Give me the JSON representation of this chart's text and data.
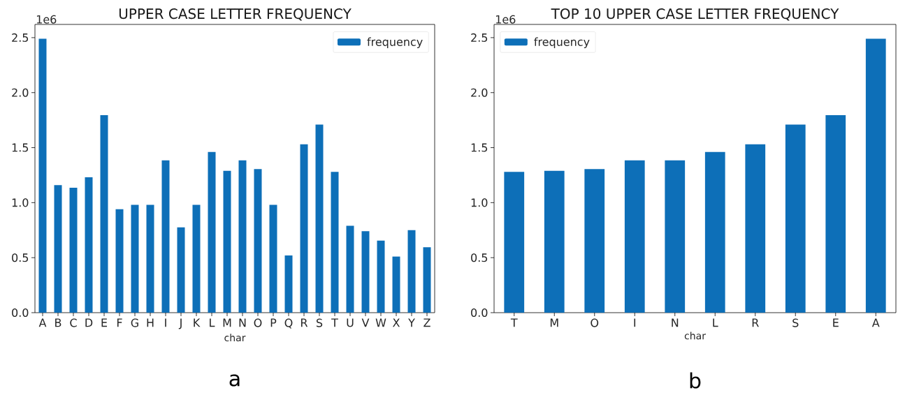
{
  "chart_data": [
    {
      "type": "bar",
      "title": "UPPER CASE LETTER FREQUENCY",
      "xlabel": "char",
      "categories": [
        "A",
        "B",
        "C",
        "D",
        "E",
        "F",
        "G",
        "H",
        "I",
        "J",
        "K",
        "L",
        "M",
        "N",
        "O",
        "P",
        "Q",
        "R",
        "S",
        "T",
        "U",
        "V",
        "W",
        "X",
        "Y",
        "Z"
      ],
      "series": [
        {
          "name": "frequency",
          "color": "#0d6fb8",
          "values": [
            2.49,
            1.16,
            1.135,
            1.23,
            1.795,
            0.94,
            0.98,
            0.98,
            1.385,
            0.775,
            0.98,
            1.46,
            1.29,
            1.385,
            1.305,
            0.98,
            0.52,
            1.53,
            1.71,
            1.28,
            0.79,
            0.74,
            0.655,
            0.51,
            0.75,
            0.595
          ]
        }
      ],
      "ylim": [
        0,
        2.62
      ],
      "yticks": [
        {
          "value": 0,
          "label": "0.0"
        },
        0.5,
        {
          "value": 1,
          "label": "1.0"
        },
        1.5,
        {
          "value": 2,
          "label": "2.0"
        },
        2.5
      ],
      "legend": "top right",
      "annotations": [
        "1e6",
        "a"
      ]
    },
    {
      "type": "bar",
      "title": "TOP 10 UPPER CASE LETTER FREQUENCY",
      "xlabel": "char",
      "categories": [
        "T",
        "M",
        "O",
        "I",
        "N",
        "L",
        "R",
        "S",
        "E",
        "A"
      ],
      "series": [
        {
          "name": "frequency",
          "color": "#0d6fb8",
          "values": [
            1.28,
            1.29,
            1.305,
            1.385,
            1.385,
            1.46,
            1.53,
            1.71,
            1.795,
            2.49
          ]
        }
      ],
      "ylim": [
        0,
        2.62
      ],
      "yticks": [
        {
          "value": 0,
          "label": "0.0"
        },
        0.5,
        {
          "value": 1,
          "label": "1.0"
        },
        1.5,
        {
          "value": 2,
          "label": "2.0"
        },
        2.5
      ],
      "legend": "top left",
      "annotations": [
        "1e6",
        "b"
      ]
    }
  ]
}
